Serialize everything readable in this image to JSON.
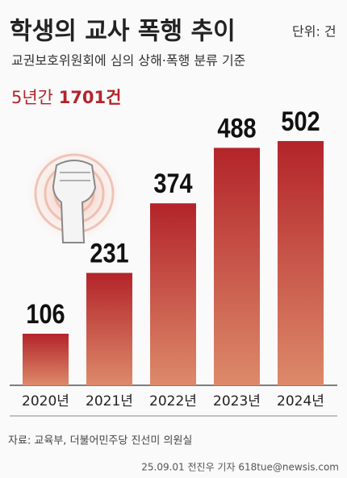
{
  "chart_data": {
    "type": "bar",
    "title": "학생의 교사 폭행 추이",
    "unit": "단위: 건",
    "subtitle": "교권보호위원회에 심의 상해·폭행 분류 기준",
    "total_prefix": "5년간",
    "total": "1701건",
    "categories": [
      "2020년",
      "2021년",
      "2022년",
      "2023년",
      "2024년"
    ],
    "values": [
      106,
      231,
      374,
      488,
      502
    ],
    "color": "#b3242a",
    "ylim": [
      0,
      550
    ],
    "source": "자료: 교육부, 더불어민주당 진선미 의원실",
    "credit": "25.09.01 전진우 기자 618tue@newsis.com"
  }
}
